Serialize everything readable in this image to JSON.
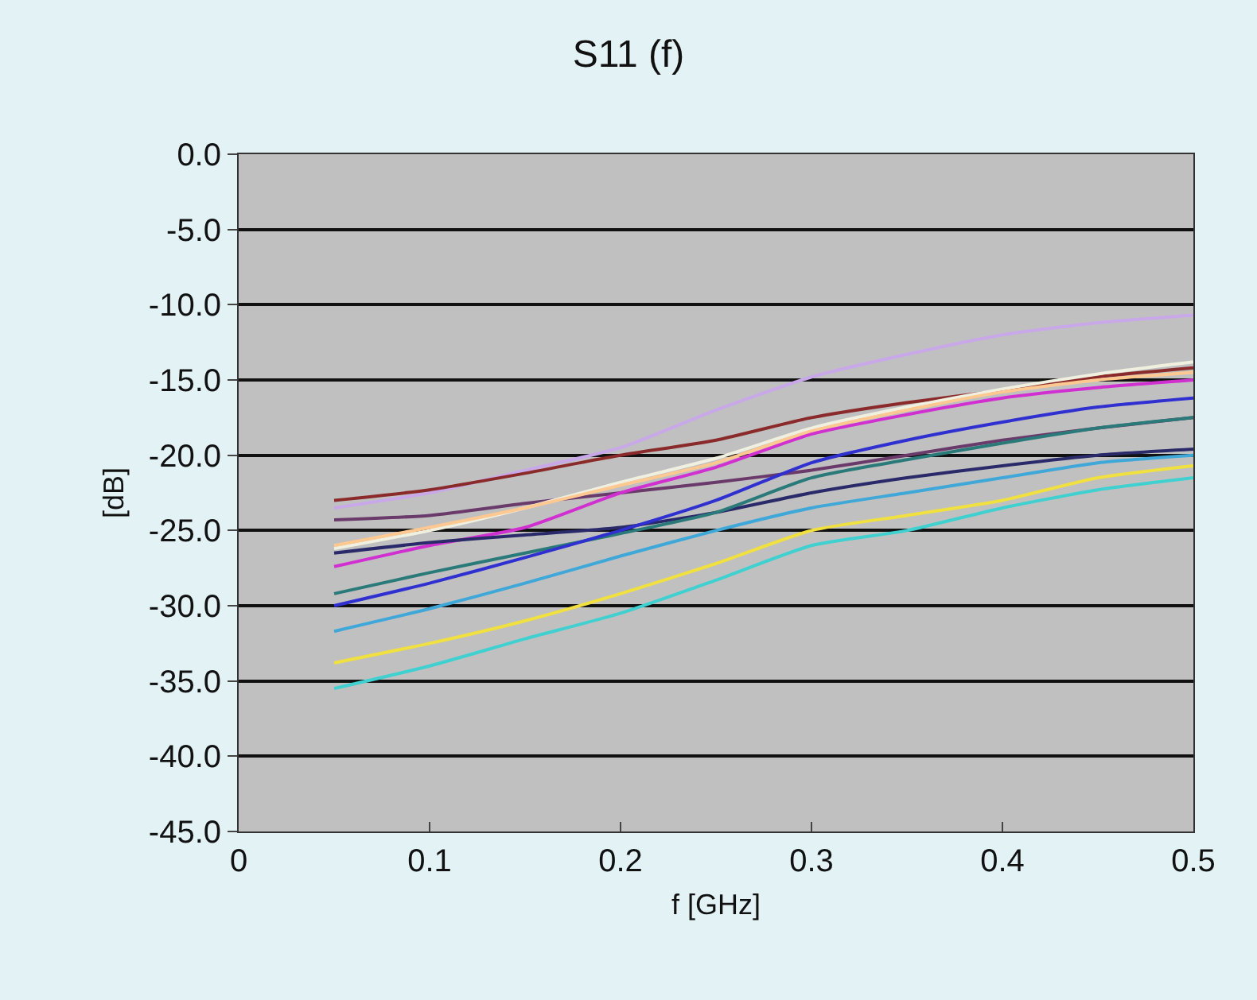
{
  "chart_data": {
    "type": "line",
    "title": "S11 (f)",
    "xlabel": "f [GHz]",
    "ylabel": "[dB]",
    "x": [
      0.05,
      0.1,
      0.15,
      0.2,
      0.25,
      0.3,
      0.35,
      0.4,
      0.45,
      0.5
    ],
    "xlim": [
      0,
      0.5
    ],
    "xticks": [
      0,
      0.1,
      0.2,
      0.3,
      0.4,
      0.5
    ],
    "ylim": [
      -45,
      0
    ],
    "yticks": [
      {
        "value": 0,
        "label": "0.0"
      },
      {
        "value": -5,
        "label": "-5.0"
      },
      {
        "value": -10,
        "label": "-10.0"
      },
      {
        "value": -15,
        "label": "-15.0"
      },
      {
        "value": -20,
        "label": "-20.0"
      },
      {
        "value": -25,
        "label": "-25.0"
      },
      {
        "value": -30,
        "label": "-30.0"
      },
      {
        "value": -35,
        "label": "-35.0"
      },
      {
        "value": -40,
        "label": "-40.0"
      },
      {
        "value": -45,
        "label": "-45.0"
      }
    ],
    "grid": "y",
    "marker": "none",
    "line_style": "solid",
    "series": [
      {
        "color": "#c8a8e8",
        "values": [
          -23.5,
          -22.5,
          -21,
          -19.5,
          -17,
          -14.8,
          -13.3,
          -12,
          -11.2,
          -10.7
        ]
      },
      {
        "color": "#8b2a2a",
        "values": [
          -23,
          -22.3,
          -21.2,
          -20,
          -19,
          -17.5,
          -16.5,
          -15.7,
          -14.8,
          -14.2
        ]
      },
      {
        "color": "#6a3a6a",
        "values": [
          -24.3,
          -24,
          -23.2,
          -22.5,
          -21.8,
          -21,
          -20,
          -19,
          -18.2,
          -17.5
        ]
      },
      {
        "color": "#f0f0e0",
        "values": [
          -26.2,
          -25,
          -23.5,
          -21.8,
          -20.2,
          -18.2,
          -16.8,
          -15.6,
          -14.6,
          -13.8
        ]
      },
      {
        "color": "#ffc890",
        "values": [
          -26,
          -24.8,
          -23.5,
          -22,
          -20.5,
          -18.4,
          -17,
          -15.8,
          -15,
          -14.5
        ]
      },
      {
        "color": "#d030d0",
        "values": [
          -27.4,
          -26,
          -24.8,
          -22.5,
          -20.8,
          -18.6,
          -17.3,
          -16.2,
          -15.5,
          -15
        ]
      },
      {
        "color": "#2a2a6a",
        "values": [
          -26.5,
          -25.8,
          -25.3,
          -24.8,
          -23.8,
          -22.5,
          -21.5,
          -20.7,
          -20,
          -19.6
        ]
      },
      {
        "color": "#2a7a7a",
        "values": [
          -29.2,
          -27.8,
          -26.5,
          -25.2,
          -23.8,
          -21.5,
          -20.3,
          -19.2,
          -18.2,
          -17.5
        ]
      },
      {
        "color": "#3030d0",
        "values": [
          -30,
          -28.5,
          -26.8,
          -25,
          -23,
          -20.5,
          -19,
          -17.8,
          -16.8,
          -16.2
        ]
      },
      {
        "color": "#40a8d8",
        "values": [
          -31.7,
          -30.2,
          -28.5,
          -26.7,
          -25,
          -23.5,
          -22.5,
          -21.5,
          -20.5,
          -20
        ]
      },
      {
        "color": "#f0e040",
        "values": [
          -33.8,
          -32.5,
          -31,
          -29.2,
          -27.2,
          -25,
          -24,
          -23,
          -21.5,
          -20.7
        ]
      },
      {
        "color": "#40d0d0",
        "values": [
          -35.5,
          -34,
          -32.2,
          -30.5,
          -28.3,
          -26,
          -25,
          -23.5,
          -22.3,
          -21.5
        ]
      }
    ]
  }
}
